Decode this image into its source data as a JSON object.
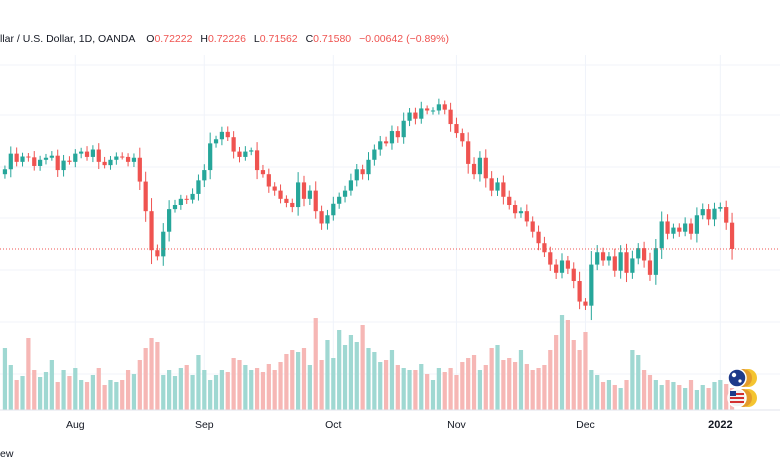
{
  "header": {
    "symbol": "llar / U.S. Dollar, 1D, OANDA",
    "open_label": "O",
    "open": "0.72222",
    "high_label": "H",
    "high": "0.72226",
    "low_label": "L",
    "low": "0.71562",
    "close_label": "C",
    "close": "0.71580",
    "change": "−0.00642 (−0.89%)"
  },
  "footer": {
    "text": "ew"
  },
  "colors": {
    "up": "#26a69a",
    "down": "#ef5350",
    "up_volume": "#9fd8d2",
    "down_volume": "#f6b7b5",
    "grid": "#f0f3fa",
    "last_price_line": "#ef5350",
    "axis_text": "#131722"
  },
  "chart_data": {
    "type": "candlestick",
    "x_ticks": [
      "Aug",
      "Sep",
      "Oct",
      "Nov",
      "Dec",
      "2022"
    ],
    "x_tick_dates": [
      "2021-08-02",
      "2021-09-01",
      "2021-10-01",
      "2021-11-01",
      "2021-12-01",
      "2022-01-03"
    ],
    "grid": true,
    "last_price_line": true,
    "closes": [
      0.7352,
      0.739,
      0.737,
      0.7383,
      0.7381,
      0.736,
      0.7375,
      0.738,
      0.7385,
      0.735,
      0.7373,
      0.737,
      0.739,
      0.7395,
      0.7382,
      0.74,
      0.737,
      0.7362,
      0.7375,
      0.7383,
      0.7382,
      0.737,
      0.738,
      0.7322,
      0.725,
      0.7155,
      0.714,
      0.72,
      0.7255,
      0.7265,
      0.728,
      0.7278,
      0.7292,
      0.7325,
      0.735,
      0.7415,
      0.7425,
      0.7443,
      0.743,
      0.7395,
      0.7382,
      0.7395,
      0.7398,
      0.735,
      0.734,
      0.731,
      0.73,
      0.728,
      0.727,
      0.726,
      0.732,
      0.728,
      0.73,
      0.725,
      0.722,
      0.724,
      0.7268,
      0.7285,
      0.73,
      0.7325,
      0.7352,
      0.734,
      0.7375,
      0.74,
      0.742,
      0.7415,
      0.7445,
      0.743,
      0.747,
      0.749,
      0.7475,
      0.75,
      0.7495,
      0.7495,
      0.751,
      0.7497,
      0.7462,
      0.744,
      0.742,
      0.7365,
      0.734,
      0.738,
      0.733,
      0.73,
      0.732,
      0.7285,
      0.7265,
      0.7245,
      0.725,
      0.7225,
      0.72,
      0.7172,
      0.715,
      0.712,
      0.71,
      0.713,
      0.711,
      0.708,
      0.703,
      0.702,
      0.712,
      0.715,
      0.713,
      0.714,
      0.7105,
      0.715,
      0.71,
      0.7135,
      0.716,
      0.713,
      0.7095,
      0.716,
      0.7225,
      0.7195,
      0.721,
      0.72,
      0.722,
      0.7195,
      0.724,
      0.7255,
      0.723,
      0.7256,
      0.726,
      0.7222,
      0.7158
    ],
    "volumes": [
      62,
      45,
      30,
      34,
      72,
      40,
      33,
      38,
      50,
      28,
      40,
      34,
      42,
      30,
      28,
      35,
      42,
      25,
      30,
      28,
      30,
      40,
      36,
      50,
      62,
      72,
      68,
      35,
      40,
      34,
      42,
      45,
      35,
      55,
      40,
      30,
      35,
      40,
      38,
      52,
      50,
      45,
      40,
      42,
      38,
      46,
      40,
      48,
      56,
      60,
      58,
      62,
      45,
      92,
      50,
      70,
      52,
      80,
      65,
      75,
      68,
      85,
      62,
      58,
      48,
      50,
      60,
      45,
      42,
      40,
      40,
      46,
      36,
      30,
      42,
      38,
      42,
      35,
      48,
      52,
      55,
      40,
      45,
      62,
      65,
      50,
      52,
      48,
      60,
      46,
      40,
      42,
      45,
      60,
      75,
      95,
      90,
      70,
      60,
      78,
      40,
      35,
      28,
      30,
      25,
      22,
      30,
      60,
      55,
      40,
      35,
      30,
      25,
      30,
      28,
      25,
      22,
      30,
      20,
      25,
      22,
      28,
      30,
      26,
      22
    ]
  }
}
